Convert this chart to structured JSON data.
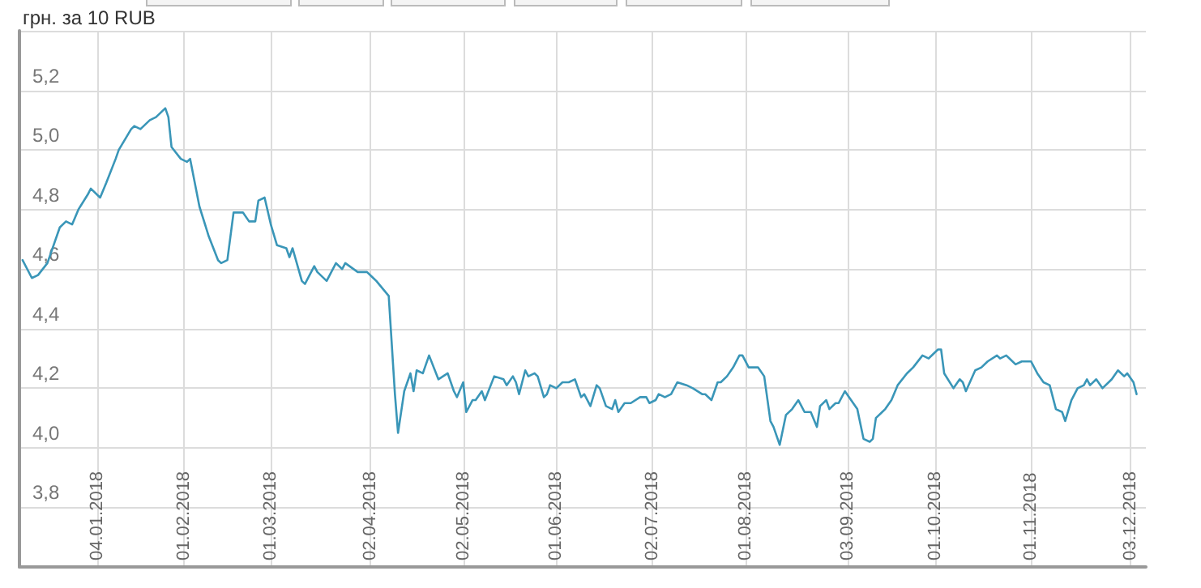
{
  "chart_data": {
    "type": "line",
    "ylabel": "грн. за 10 RUB",
    "x": [
      "2017-12-11",
      "2017-12-14",
      "2017-12-16",
      "2017-12-19",
      "2017-12-20",
      "2017-12-23",
      "2017-12-25",
      "2017-12-27",
      "2017-12-29",
      "2018-01-01",
      "2018-01-02",
      "2018-01-05",
      "2018-01-07",
      "2018-01-10",
      "2018-01-11",
      "2018-01-15",
      "2018-01-16",
      "2018-01-18",
      "2018-01-21",
      "2018-01-23",
      "2018-01-26",
      "2018-01-27",
      "2018-01-28",
      "2018-01-31",
      "2018-02-02",
      "2018-02-03",
      "2018-02-06",
      "2018-02-09",
      "2018-02-12",
      "2018-02-13",
      "2018-02-15",
      "2018-02-17",
      "2018-02-20",
      "2018-02-22",
      "2018-02-24",
      "2018-02-25",
      "2018-02-27",
      "2018-03-01",
      "2018-03-03",
      "2018-03-06",
      "2018-03-07",
      "2018-03-08",
      "2018-03-11",
      "2018-03-12",
      "2018-03-15",
      "2018-03-16",
      "2018-03-19",
      "2018-03-22",
      "2018-03-24",
      "2018-03-25",
      "2018-03-29",
      "2018-04-01",
      "2018-04-03",
      "2018-04-04",
      "2018-04-08",
      "2018-04-10",
      "2018-04-11",
      "2018-04-13",
      "2018-04-15",
      "2018-04-16",
      "2018-04-17",
      "2018-04-19",
      "2018-04-21",
      "2018-04-24",
      "2018-04-27",
      "2018-04-29",
      "2018-04-30",
      "2018-05-02",
      "2018-05-03",
      "2018-05-05",
      "2018-05-06",
      "2018-05-08",
      "2018-05-09",
      "2018-05-12",
      "2018-05-15",
      "2018-05-16",
      "2018-05-18",
      "2018-05-19",
      "2018-05-20",
      "2018-05-22",
      "2018-05-23",
      "2018-05-25",
      "2018-05-26",
      "2018-05-28",
      "2018-05-29",
      "2018-05-30",
      "2018-06-01",
      "2018-06-03",
      "2018-06-05",
      "2018-06-07",
      "2018-06-09",
      "2018-06-10",
      "2018-06-12",
      "2018-06-14",
      "2018-06-15",
      "2018-06-17",
      "2018-06-19",
      "2018-06-20",
      "2018-06-21",
      "2018-06-23",
      "2018-06-25",
      "2018-06-28",
      "2018-06-30",
      "2018-07-01",
      "2018-07-03",
      "2018-07-04",
      "2018-07-06",
      "2018-07-08",
      "2018-07-10",
      "2018-07-13",
      "2018-07-15",
      "2018-07-18",
      "2018-07-19",
      "2018-07-21",
      "2018-07-23",
      "2018-07-24",
      "2018-07-26",
      "2018-07-28",
      "2018-07-30",
      "2018-07-31",
      "2018-08-02",
      "2018-08-05",
      "2018-08-07",
      "2018-08-09",
      "2018-08-10",
      "2018-08-12",
      "2018-08-14",
      "2018-08-16",
      "2018-08-18",
      "2018-08-19",
      "2018-08-20",
      "2018-08-22",
      "2018-08-24",
      "2018-08-25",
      "2018-08-27",
      "2018-08-28",
      "2018-08-30",
      "2018-08-31",
      "2018-09-02",
      "2018-09-04",
      "2018-09-06",
      "2018-09-08",
      "2018-09-10",
      "2018-09-11",
      "2018-09-12",
      "2018-09-14",
      "2018-09-15",
      "2018-09-17",
      "2018-09-19",
      "2018-09-22",
      "2018-09-24",
      "2018-09-27",
      "2018-09-29",
      "2018-10-02",
      "2018-10-03",
      "2018-10-04",
      "2018-10-07",
      "2018-10-09",
      "2018-10-10",
      "2018-10-11",
      "2018-10-14",
      "2018-10-16",
      "2018-10-18",
      "2018-10-21",
      "2018-10-22",
      "2018-10-24",
      "2018-10-25",
      "2018-10-27",
      "2018-10-29",
      "2018-11-01",
      "2018-11-03",
      "2018-11-05",
      "2018-11-07",
      "2018-11-09",
      "2018-11-11",
      "2018-11-12",
      "2018-11-14",
      "2018-11-16",
      "2018-11-18",
      "2018-11-19",
      "2018-11-20",
      "2018-11-22",
      "2018-11-24",
      "2018-11-26",
      "2018-11-27",
      "2018-11-29",
      "2018-12-01",
      "2018-12-02",
      "2018-12-04",
      "2018-12-05"
    ],
    "series": [
      {
        "color": "#3a96b8",
        "values": [
          4.63,
          4.57,
          4.58,
          4.62,
          4.65,
          4.74,
          4.76,
          4.75,
          4.8,
          4.85,
          4.87,
          4.84,
          4.89,
          4.97,
          5.0,
          5.07,
          5.08,
          5.07,
          5.1,
          5.11,
          5.14,
          5.11,
          5.01,
          4.97,
          4.96,
          4.97,
          4.81,
          4.71,
          4.63,
          4.62,
          4.63,
          4.79,
          4.79,
          4.76,
          4.76,
          4.83,
          4.84,
          4.75,
          4.68,
          4.67,
          4.64,
          4.67,
          4.56,
          4.55,
          4.61,
          4.59,
          4.56,
          4.62,
          4.6,
          4.62,
          4.59,
          4.59,
          4.57,
          4.56,
          4.51,
          4.18,
          4.05,
          4.19,
          4.25,
          4.19,
          4.26,
          4.25,
          4.31,
          4.23,
          4.25,
          4.19,
          4.17,
          4.22,
          4.12,
          4.16,
          4.16,
          4.19,
          4.16,
          4.24,
          4.23,
          4.21,
          4.24,
          4.22,
          4.18,
          4.26,
          4.24,
          4.25,
          4.24,
          4.17,
          4.18,
          4.21,
          4.2,
          4.22,
          4.22,
          4.23,
          4.17,
          4.18,
          4.14,
          4.21,
          4.2,
          4.14,
          4.13,
          4.16,
          4.12,
          4.15,
          4.15,
          4.17,
          4.17,
          4.15,
          4.16,
          4.18,
          4.17,
          4.18,
          4.22,
          4.21,
          4.2,
          4.18,
          4.18,
          4.16,
          4.22,
          4.22,
          4.24,
          4.27,
          4.31,
          4.31,
          4.27,
          4.27,
          4.24,
          4.09,
          4.07,
          4.01,
          4.11,
          4.13,
          4.16,
          4.14,
          4.12,
          4.12,
          4.07,
          4.14,
          4.16,
          4.13,
          4.15,
          4.15,
          4.19,
          4.16,
          4.13,
          4.03,
          4.02,
          4.03,
          4.1,
          4.12,
          4.13,
          4.16,
          4.21,
          4.25,
          4.27,
          4.31,
          4.3,
          4.33,
          4.33,
          4.25,
          4.2,
          4.23,
          4.22,
          4.19,
          4.26,
          4.27,
          4.29,
          4.31,
          4.3,
          4.31,
          4.3,
          4.28,
          4.29,
          4.29,
          4.25,
          4.22,
          4.21,
          4.13,
          4.12,
          4.09,
          4.16,
          4.2,
          4.21,
          4.23,
          4.21,
          4.23,
          4.2,
          4.22,
          4.23,
          4.26,
          4.24,
          4.25,
          4.22,
          4.18
        ]
      }
    ],
    "xlim": [
      "2017-12-10",
      "2018-12-08"
    ],
    "xticks": [
      {
        "value": "2018-01-04",
        "label": "04.01.2018"
      },
      {
        "value": "2018-02-01",
        "label": "01.02.2018"
      },
      {
        "value": "2018-03-01",
        "label": "01.03.2018"
      },
      {
        "value": "2018-04-02",
        "label": "02.04.2018"
      },
      {
        "value": "2018-05-02",
        "label": "02.05.2018"
      },
      {
        "value": "2018-06-01",
        "label": "01.06.2018"
      },
      {
        "value": "2018-07-02",
        "label": "02.07.2018"
      },
      {
        "value": "2018-08-01",
        "label": "01.08.2018"
      },
      {
        "value": "2018-09-03",
        "label": "03.09.2018"
      },
      {
        "value": "2018-10-01",
        "label": "01.10.2018"
      },
      {
        "value": "2018-11-01",
        "label": "01.11.2018"
      },
      {
        "value": "2018-12-03",
        "label": "03.12.2018"
      }
    ],
    "ylim": [
      3.6,
      5.4
    ],
    "yticks": [
      {
        "value": 3.8,
        "label": "3,8"
      },
      {
        "value": 4.0,
        "label": "4,0"
      },
      {
        "value": 4.2,
        "label": "4,2"
      },
      {
        "value": 4.4,
        "label": "4,4"
      },
      {
        "value": 4.6,
        "label": "4,6"
      },
      {
        "value": 4.8,
        "label": "4,8"
      },
      {
        "value": 5.0,
        "label": "5,0"
      },
      {
        "value": 5.2,
        "label": "5,2"
      },
      {
        "value": 5.4,
        "label": null
      }
    ],
    "grid": true,
    "marker": "none",
    "line_style": "solid"
  }
}
